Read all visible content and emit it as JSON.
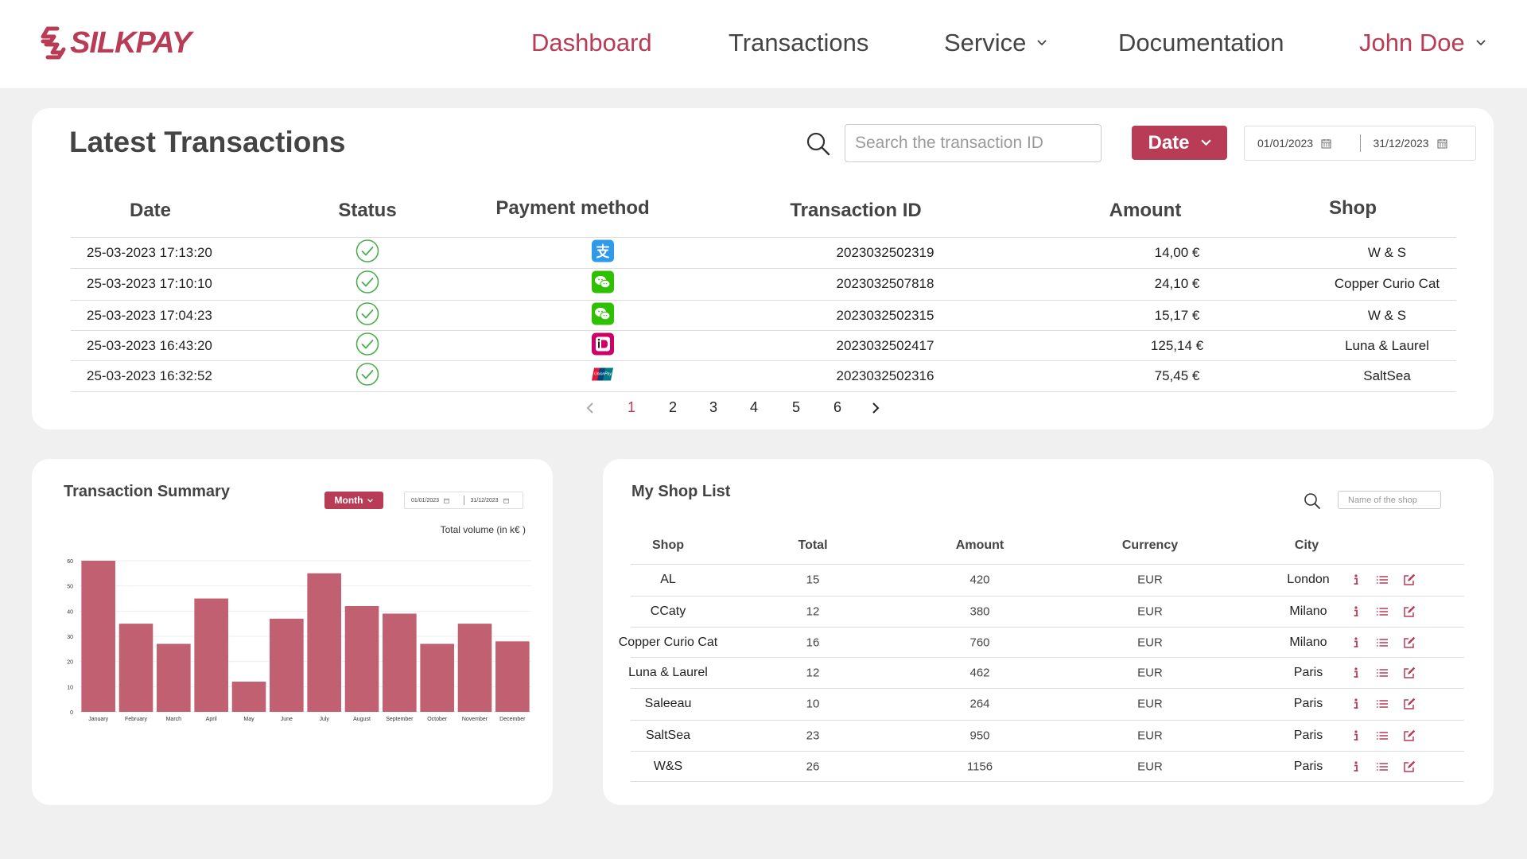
{
  "brand": {
    "name": "SILKPAY",
    "accent": "#b83c56"
  },
  "nav": {
    "items": [
      {
        "label": "Dashboard",
        "active": true
      },
      {
        "label": "Transactions",
        "active": false
      },
      {
        "label": "Service",
        "active": false,
        "dropdown": true
      },
      {
        "label": "Documentation",
        "active": false
      }
    ],
    "user": "John Doe"
  },
  "latest": {
    "title": "Latest Transactions",
    "search_placeholder": "Search the transaction ID",
    "filter_label": "Date",
    "date_from": "01/01/2023",
    "date_to": "31/12/2023",
    "columns": [
      "Date",
      "Status",
      "Payment method",
      "Transaction ID",
      "Amount",
      "Shop"
    ],
    "rows": [
      {
        "date": "25-03-2023 17:13:20",
        "status": "success",
        "method": "alipay-icon",
        "id": "2023032502319",
        "amount": "14,00 €",
        "shop": "W & S"
      },
      {
        "date": "25-03-2023 17:10:10",
        "status": "success",
        "method": "wechat-pay-icon",
        "id": "2023032507818",
        "amount": "24,10 €",
        "shop": "Copper Curio Cat"
      },
      {
        "date": "25-03-2023 17:04:23",
        "status": "success",
        "method": "wechat-pay-icon",
        "id": "2023032502315",
        "amount": "15,17 €",
        "shop": "W & S"
      },
      {
        "date": "25-03-2023 16:43:20",
        "status": "success",
        "method": "ideal-icon",
        "id": "2023032502417",
        "amount": "125,14 €",
        "shop": "Luna & Laurel"
      },
      {
        "date": "25-03-2023 16:32:52",
        "status": "success",
        "method": "unionpay-icon",
        "id": "2023032502316",
        "amount": "75,45 €",
        "shop": "SaltSea"
      }
    ],
    "pagination": {
      "pages": [
        "1",
        "2",
        "3",
        "4",
        "5",
        "6"
      ],
      "current": "1"
    }
  },
  "summary": {
    "title": "Transaction Summary",
    "period_label": "Month",
    "date_from": "01/01/2023",
    "date_to": "31/12/2023"
  },
  "chart_data": {
    "type": "bar",
    "title": "",
    "xlabel": "",
    "ylabel": "Total volume (in k€ )",
    "categories": [
      "January",
      "February",
      "March",
      "April",
      "May",
      "June",
      "July",
      "August",
      "September",
      "October",
      "November",
      "December"
    ],
    "values": [
      60,
      35,
      27,
      45,
      12,
      37,
      55,
      42,
      39,
      27,
      35,
      28
    ],
    "ylim": [
      0,
      60
    ],
    "yticks": [
      0,
      10,
      20,
      30,
      40,
      50,
      60
    ],
    "grid": true,
    "color": "#c06070"
  },
  "shops": {
    "title": "My Shop List",
    "search_placeholder": "Name of the shop",
    "columns": [
      "Shop",
      "Total",
      "Amount",
      "Currency",
      "City"
    ],
    "rows": [
      {
        "shop": "AL",
        "total": "15",
        "amount": "420",
        "currency": "EUR",
        "city": "London"
      },
      {
        "shop": "CCaty",
        "total": "12",
        "amount": "380",
        "currency": "EUR",
        "city": "Milano"
      },
      {
        "shop": "Copper Curio Cat",
        "total": "16",
        "amount": "760",
        "currency": "EUR",
        "city": "Milano"
      },
      {
        "shop": "Luna & Laurel",
        "total": "12",
        "amount": "462",
        "currency": "EUR",
        "city": "Paris"
      },
      {
        "shop": "Saleeau",
        "total": "10",
        "amount": "264",
        "currency": "EUR",
        "city": "Paris"
      },
      {
        "shop": "SaltSea",
        "total": "23",
        "amount": "950",
        "currency": "EUR",
        "city": "Paris"
      },
      {
        "shop": "W&S",
        "total": "26",
        "amount": "1156",
        "currency": "EUR",
        "city": "Paris"
      }
    ],
    "actions": [
      "info-icon",
      "list-icon",
      "edit-icon"
    ]
  }
}
